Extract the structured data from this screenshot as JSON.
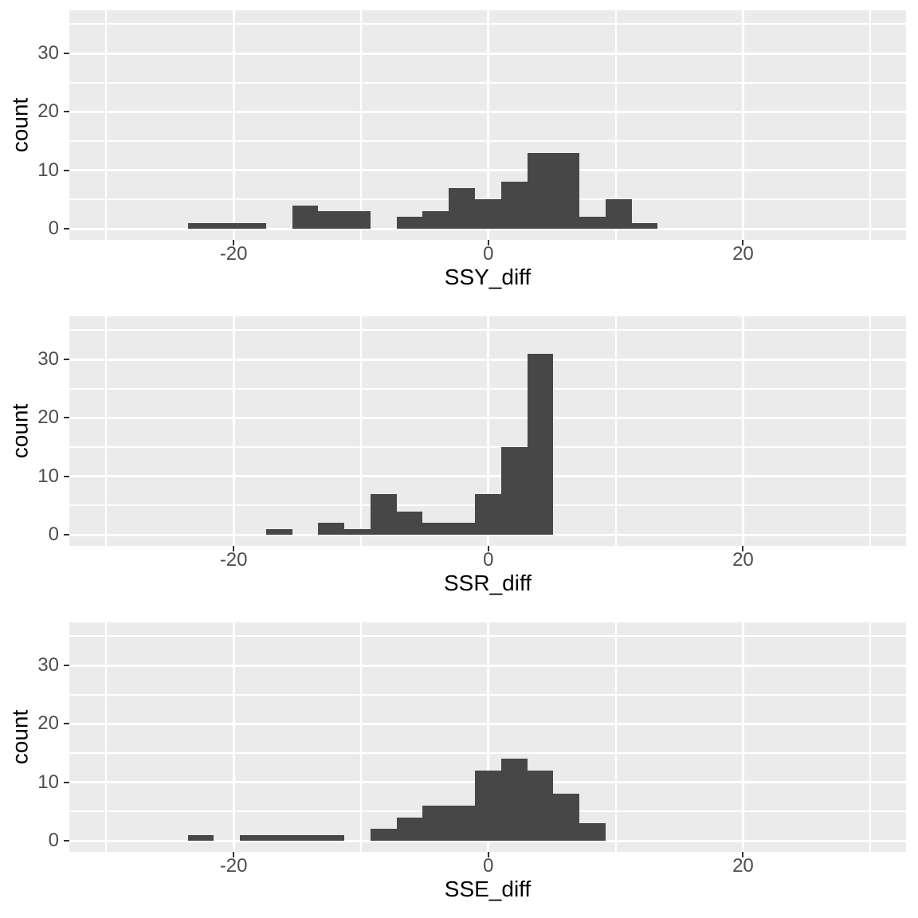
{
  "colors": {
    "page_bg": "#FFFFFF",
    "panel_bg": "#EBEBEB",
    "bar_fill": "#474747",
    "grid_major": "#FFFFFF",
    "grid_minor": "#FFFFFF",
    "tick_mark": "#333333",
    "tick_label": "#4D4D4D",
    "axis_title": "#000000"
  },
  "chart_data": [
    {
      "type": "bar",
      "subtype": "histogram",
      "title": "",
      "xlabel": "SSY_diff",
      "ylabel": "count",
      "x_ticks": [
        -20,
        0,
        20
      ],
      "x_tick_labels": [
        "-20",
        "0",
        "20"
      ],
      "y_ticks": [
        0,
        10,
        20,
        30
      ],
      "y_tick_labels": [
        "0",
        "10",
        "20",
        "30"
      ],
      "x_minor_gridlines": [
        -30,
        -10,
        10,
        30
      ],
      "y_minor_gridlines": [
        5,
        15,
        25,
        35
      ],
      "xlim": [
        -32.9,
        32.8
      ],
      "ylim": [
        -1.9,
        37.3
      ],
      "grid": "on",
      "binwidth": 2.05,
      "bars": [
        {
          "x0": -23.6,
          "x1": -21.55,
          "count": 1
        },
        {
          "x0": -21.55,
          "x1": -19.5,
          "count": 1
        },
        {
          "x0": -19.5,
          "x1": -17.45,
          "count": 1
        },
        {
          "x0": -15.4,
          "x1": -13.35,
          "count": 4
        },
        {
          "x0": -13.35,
          "x1": -11.3,
          "count": 3
        },
        {
          "x0": -11.3,
          "x1": -9.25,
          "count": 3
        },
        {
          "x0": -7.2,
          "x1": -5.15,
          "count": 2
        },
        {
          "x0": -5.15,
          "x1": -3.1,
          "count": 3
        },
        {
          "x0": -3.1,
          "x1": -1.05,
          "count": 7
        },
        {
          "x0": -1.05,
          "x1": 1.0,
          "count": 5
        },
        {
          "x0": 1.0,
          "x1": 3.05,
          "count": 8
        },
        {
          "x0": 3.05,
          "x1": 5.1,
          "count": 13
        },
        {
          "x0": 5.1,
          "x1": 7.15,
          "count": 13
        },
        {
          "x0": 7.15,
          "x1": 9.2,
          "count": 2
        },
        {
          "x0": 9.2,
          "x1": 11.25,
          "count": 5
        },
        {
          "x0": 11.25,
          "x1": 13.3,
          "count": 1
        }
      ]
    },
    {
      "type": "bar",
      "subtype": "histogram",
      "title": "",
      "xlabel": "SSR_diff",
      "ylabel": "count",
      "x_ticks": [
        -20,
        0,
        20
      ],
      "x_tick_labels": [
        "-20",
        "0",
        "20"
      ],
      "y_ticks": [
        0,
        10,
        20,
        30
      ],
      "y_tick_labels": [
        "0",
        "10",
        "20",
        "30"
      ],
      "x_minor_gridlines": [
        -30,
        -10,
        10,
        30
      ],
      "y_minor_gridlines": [
        5,
        15,
        25,
        35
      ],
      "xlim": [
        -32.9,
        32.8
      ],
      "ylim": [
        -1.9,
        37.3
      ],
      "grid": "on",
      "binwidth": 2.05,
      "bars": [
        {
          "x0": -17.45,
          "x1": -15.4,
          "count": 1
        },
        {
          "x0": -13.35,
          "x1": -11.3,
          "count": 2
        },
        {
          "x0": -11.3,
          "x1": -9.25,
          "count": 1
        },
        {
          "x0": -9.25,
          "x1": -7.2,
          "count": 7
        },
        {
          "x0": -7.2,
          "x1": -5.15,
          "count": 4
        },
        {
          "x0": -5.15,
          "x1": -3.1,
          "count": 2
        },
        {
          "x0": -3.1,
          "x1": -1.05,
          "count": 2
        },
        {
          "x0": -1.05,
          "x1": 1.0,
          "count": 7
        },
        {
          "x0": 1.0,
          "x1": 3.05,
          "count": 15
        },
        {
          "x0": 3.05,
          "x1": 5.1,
          "count": 31
        }
      ]
    },
    {
      "type": "bar",
      "subtype": "histogram",
      "title": "",
      "xlabel": "SSE_diff",
      "ylabel": "count",
      "x_ticks": [
        -20,
        0,
        20
      ],
      "x_tick_labels": [
        "-20",
        "0",
        "20"
      ],
      "y_ticks": [
        0,
        10,
        20,
        30
      ],
      "y_tick_labels": [
        "0",
        "10",
        "20",
        "30"
      ],
      "x_minor_gridlines": [
        -30,
        -10,
        10,
        30
      ],
      "y_minor_gridlines": [
        5,
        15,
        25,
        35
      ],
      "xlim": [
        -32.9,
        32.8
      ],
      "ylim": [
        -1.9,
        37.3
      ],
      "grid": "on",
      "binwidth": 2.05,
      "bars": [
        {
          "x0": -23.6,
          "x1": -21.55,
          "count": 1
        },
        {
          "x0": -19.5,
          "x1": -17.45,
          "count": 1
        },
        {
          "x0": -17.45,
          "x1": -15.4,
          "count": 1
        },
        {
          "x0": -15.4,
          "x1": -13.35,
          "count": 1
        },
        {
          "x0": -13.35,
          "x1": -11.3,
          "count": 1
        },
        {
          "x0": -9.25,
          "x1": -7.2,
          "count": 2
        },
        {
          "x0": -7.2,
          "x1": -5.15,
          "count": 4
        },
        {
          "x0": -5.15,
          "x1": -3.1,
          "count": 6
        },
        {
          "x0": -3.1,
          "x1": -1.05,
          "count": 6
        },
        {
          "x0": -1.05,
          "x1": 1.0,
          "count": 12
        },
        {
          "x0": 1.0,
          "x1": 3.05,
          "count": 14
        },
        {
          "x0": 3.05,
          "x1": 5.1,
          "count": 12
        },
        {
          "x0": 5.1,
          "x1": 7.15,
          "count": 8
        },
        {
          "x0": 7.15,
          "x1": 9.2,
          "count": 3
        }
      ]
    }
  ]
}
